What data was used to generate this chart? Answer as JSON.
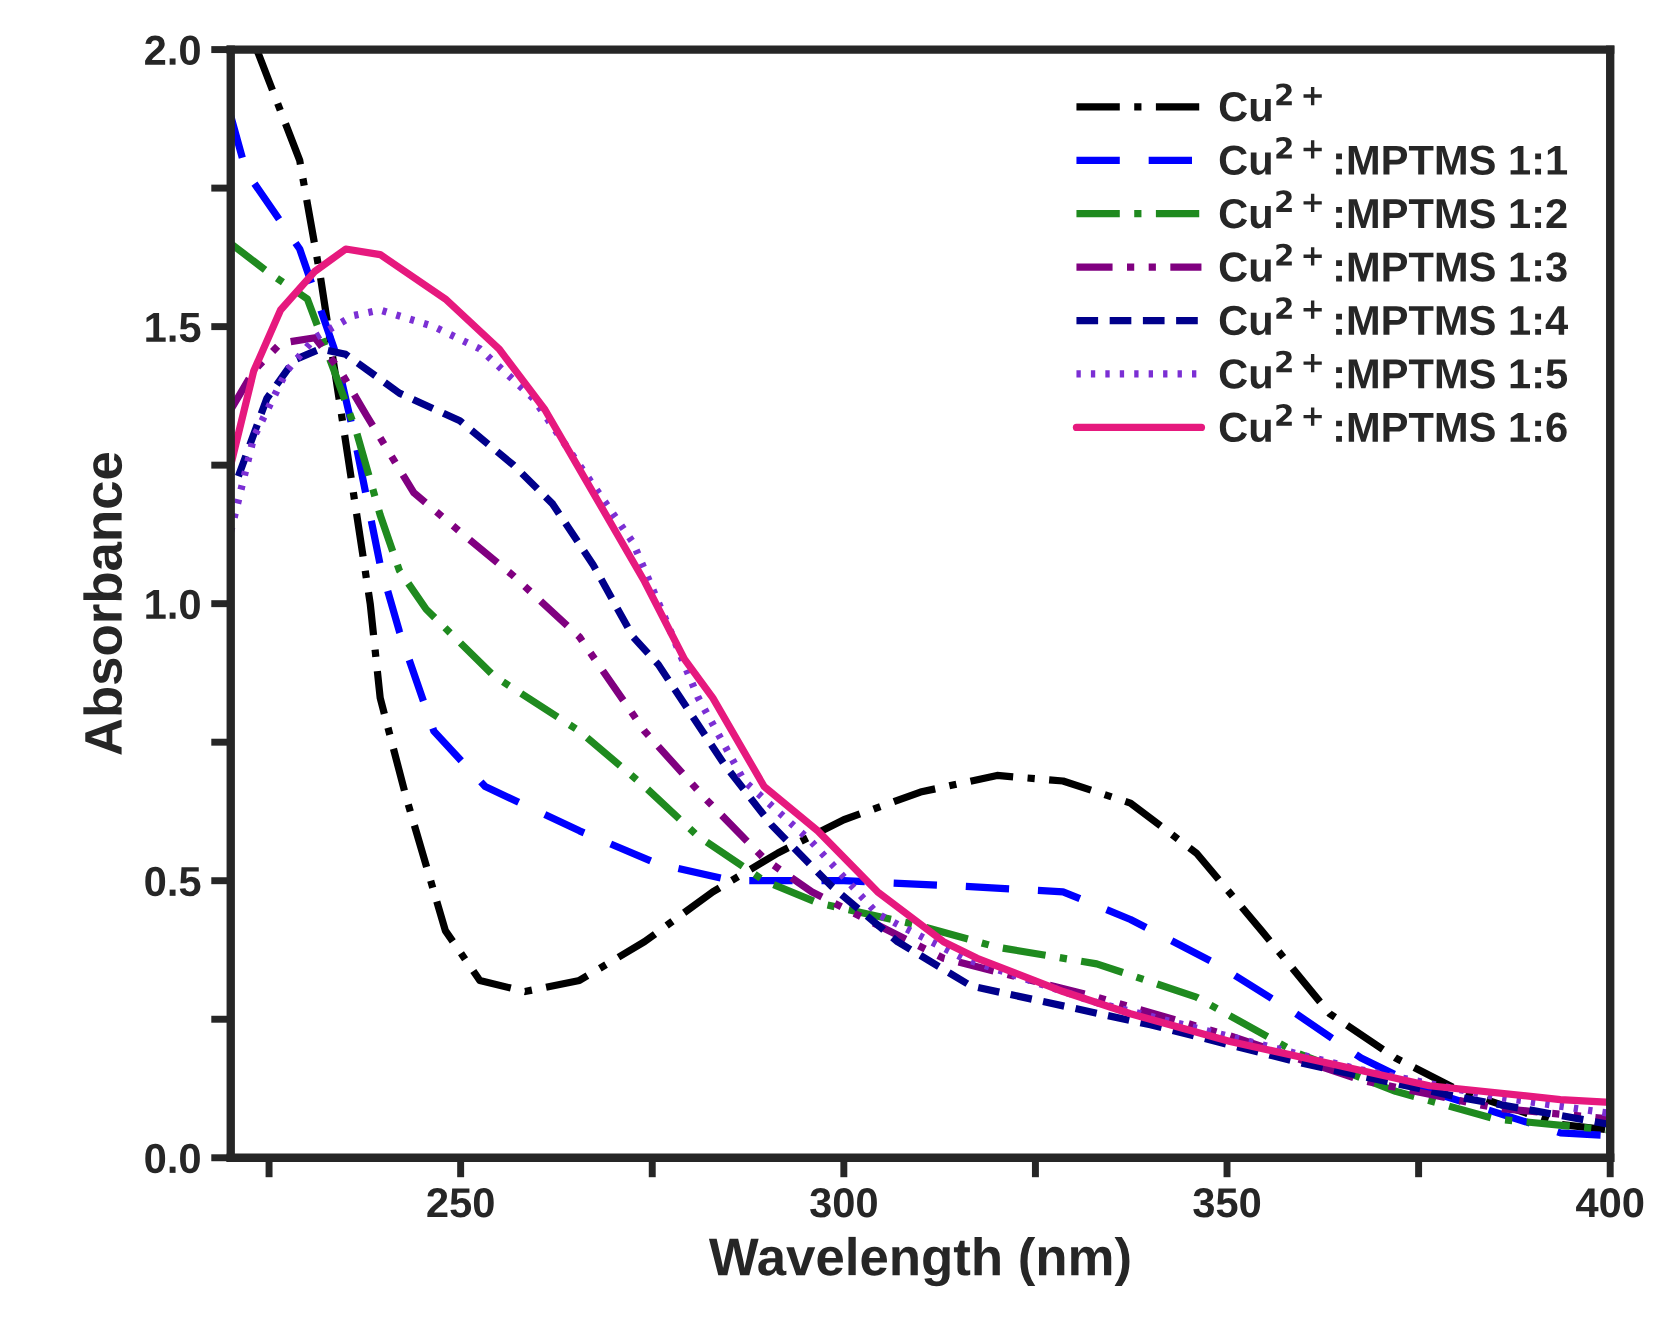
{
  "chart_data": {
    "type": "line",
    "xlabel": "Wavelength (nm)",
    "ylabel": "Absorbance",
    "xlim": [
      220,
      400
    ],
    "ylim": [
      0,
      2
    ],
    "xticks": [
      {
        "value": 225,
        "label": null
      },
      250,
      {
        "value": 275,
        "label": null
      },
      300,
      {
        "value": 325,
        "label": null
      },
      350,
      {
        "value": 375,
        "label": null
      },
      400
    ],
    "yticks": [
      {
        "value": 0,
        "label": "0.0"
      },
      {
        "value": 0.25,
        "label": null
      },
      0.5,
      {
        "value": 0.75,
        "label": null
      },
      {
        "value": 1,
        "label": "1.0"
      },
      {
        "value": 1.25,
        "label": null
      },
      1.5,
      {
        "value": 1.75,
        "label": null
      },
      {
        "value": 2,
        "label": "2.0"
      }
    ],
    "grid": false,
    "legend": "top right",
    "series": [
      {
        "name": "Cu$^{2+}$",
        "color": "#000000",
        "line_style": "dashdot",
        "x": [
          223.4,
          229,
          231.7,
          234.8,
          238.2,
          239.5,
          242.9,
          248,
          252.5,
          258.4,
          265.5,
          274,
          282.9,
          291.4,
          300,
          310,
          320,
          328.6,
          337.4,
          346,
          354.5,
          363.4,
          372,
          380.5,
          393.5,
          400
        ],
        "values": [
          2.0,
          1.8,
          1.59,
          1.31,
          1.0,
          0.83,
          0.65,
          0.41,
          0.32,
          0.3,
          0.32,
          0.39,
          0.48,
          0.55,
          0.61,
          0.66,
          0.69,
          0.68,
          0.64,
          0.55,
          0.41,
          0.26,
          0.18,
          0.12,
          0.06,
          0.05
        ]
      },
      {
        "name": "Cu$^{2+}$:MPTMS 1:1",
        "color": "#0000ff",
        "line_style": "longdash",
        "x": [
          220,
          222,
          229,
          233.5,
          236,
          239.5,
          242,
          246.5,
          253.2,
          265.5,
          275.8,
          285.5,
          300,
          315.6,
          328.6,
          337.4,
          348.6,
          359,
          367.5,
          376.4,
          393.5,
          400
        ],
        "values": [
          1.88,
          1.78,
          1.64,
          1.46,
          1.31,
          1.07,
          0.95,
          0.77,
          0.67,
          0.59,
          0.53,
          0.5,
          0.5,
          0.49,
          0.48,
          0.43,
          0.35,
          0.26,
          0.18,
          0.12,
          0.045,
          0.04
        ]
      },
      {
        "name": "Cu$^{2+}$:MPTMS 1:2",
        "color": "#1f8a1f",
        "line_style": "dashdot",
        "x": [
          220,
          224.7,
          230,
          233.5,
          236.4,
          239.5,
          242,
          245.5,
          254.3,
          265.5,
          274,
          281,
          289.6,
          296.6,
          309.6,
          320,
          333,
          346,
          359,
          372,
          385,
          400
        ],
        "values": [
          1.65,
          1.6,
          1.55,
          1.42,
          1.31,
          1.16,
          1.06,
          0.99,
          0.87,
          0.77,
          0.67,
          0.58,
          0.5,
          0.46,
          0.42,
          0.38,
          0.35,
          0.29,
          0.19,
          0.12,
          0.07,
          0.05
        ]
      },
      {
        "name": "Cu$^{2+}$:MPTMS 1:3",
        "color": "#800080",
        "line_style": "dashdotdot",
        "x": [
          220,
          223,
          226.5,
          231,
          234.3,
          237.7,
          243.9,
          249.9,
          256.9,
          265.5,
          274,
          281.8,
          289.6,
          295.8,
          304.4,
          313,
          333,
          350.4,
          367.5,
          385,
          400
        ],
        "values": [
          1.35,
          1.42,
          1.47,
          1.48,
          1.42,
          1.34,
          1.2,
          1.13,
          1.05,
          0.94,
          0.77,
          0.65,
          0.54,
          0.48,
          0.42,
          0.36,
          0.29,
          0.22,
          0.14,
          0.09,
          0.07
        ]
      },
      {
        "name": "Cu$^{2+}$:MPTMS 1:4",
        "color": "#00008b",
        "line_style": "dashed",
        "x": [
          221,
          224.7,
          228.3,
          231.7,
          235,
          242,
          249.9,
          256.9,
          262,
          267.3,
          272.5,
          275.8,
          284.4,
          290.6,
          298.4,
          307,
          316.6,
          340,
          360,
          380,
          400
        ],
        "values": [
          1.23,
          1.37,
          1.44,
          1.46,
          1.45,
          1.38,
          1.33,
          1.25,
          1.18,
          1.07,
          0.94,
          0.89,
          0.71,
          0.6,
          0.49,
          0.39,
          0.31,
          0.24,
          0.17,
          0.11,
          0.06
        ]
      },
      {
        "name": "Cu$^{2+}$:MPTMS 1:5",
        "color": "#7b2fd4",
        "line_style": "dotted",
        "x": [
          220,
          223,
          227.3,
          231,
          236,
          239.5,
          246.5,
          252.5,
          259.5,
          265.5,
          272.5,
          277.7,
          281,
          287,
          295.8,
          304.4,
          315.6,
          333,
          350,
          367,
          385,
          400
        ],
        "values": [
          1.13,
          1.3,
          1.42,
          1.48,
          1.52,
          1.53,
          1.5,
          1.46,
          1.37,
          1.25,
          1.11,
          0.94,
          0.83,
          0.68,
          0.57,
          0.44,
          0.36,
          0.28,
          0.22,
          0.16,
          0.11,
          0.08
        ]
      },
      {
        "name": "Cu$^{2+}$:MPTMS 1:6",
        "color": "#e6197e",
        "line_style": "solid",
        "x": [
          220,
          223,
          226.5,
          231,
          235,
          239.5,
          248,
          255,
          261,
          267.3,
          274,
          279.2,
          282.9,
          289.6,
          296.6,
          304.4,
          313,
          317.4,
          328.6,
          337.4,
          350.4,
          363.4,
          376.4,
          393.5,
          400
        ],
        "values": [
          1.25,
          1.42,
          1.53,
          1.6,
          1.64,
          1.63,
          1.55,
          1.46,
          1.35,
          1.2,
          1.04,
          0.9,
          0.83,
          0.67,
          0.59,
          0.48,
          0.39,
          0.36,
          0.3,
          0.26,
          0.21,
          0.17,
          0.13,
          0.105,
          0.1
        ]
      }
    ]
  }
}
